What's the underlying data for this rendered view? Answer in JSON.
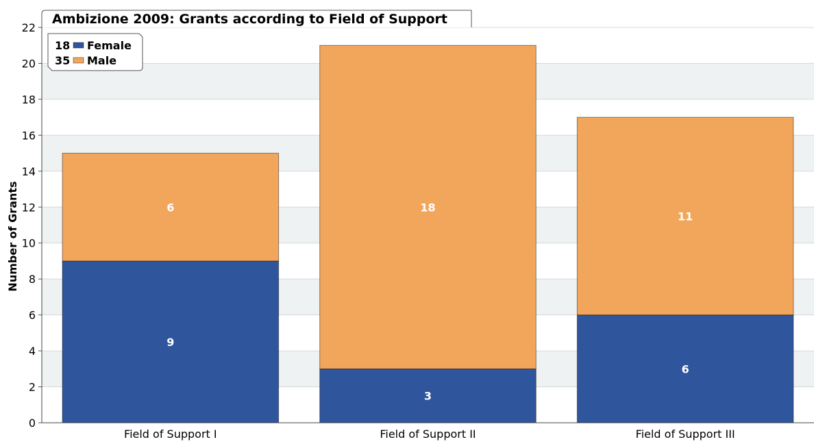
{
  "chart_data": {
    "type": "bar",
    "stacked": true,
    "title": "Ambizione 2009: Grants according to Field of Support",
    "xlabel": "",
    "ylabel": "Number of Grants",
    "categories": [
      "Field of Support I",
      "Field of Support II",
      "Field of Support III"
    ],
    "series": [
      {
        "name": "Female",
        "total": "18",
        "color": "#2f559c",
        "values": [
          9,
          3,
          6
        ]
      },
      {
        "name": "Male",
        "total": "35",
        "color": "#f2a65c",
        "values": [
          6,
          18,
          11
        ]
      }
    ],
    "ylim": [
      0,
      22
    ],
    "yticks": [
      0,
      2,
      4,
      6,
      8,
      10,
      12,
      14,
      16,
      18,
      20,
      22
    ],
    "grid": true,
    "legend": "top-left"
  }
}
